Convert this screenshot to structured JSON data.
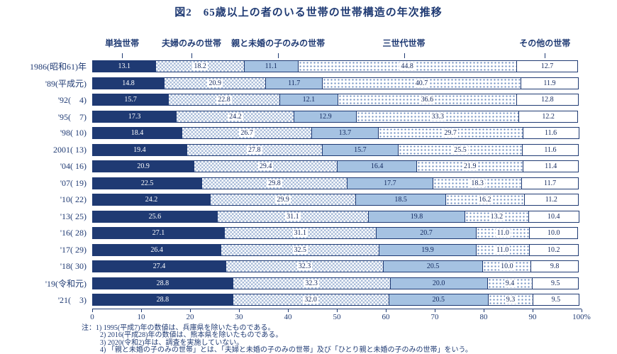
{
  "title": "図2　65歳以上の者のいる世帯の世帯構造の年次推移",
  "notes": [
    "注：1) 1995(平成7)年の数値は、兵庫県を除いたものである。",
    "2) 2016(平成28)年の数値は、熊本県を除いたものである。",
    "3) 2020(令和2)年は、調査を実施していない。",
    "4) 「親と未婚の子のみの世帯」とは、「夫婦と未婚の子のみの世帯」及び「ひとり親と未婚の子のみの世帯」をいう。"
  ],
  "chart_data": {
    "type": "bar",
    "stacked": true,
    "orientation": "horizontal",
    "title": "図2　65歳以上の者のいる世帯の世帯構造の年次推移",
    "xlim": [
      0,
      100
    ],
    "x_ticks": [
      "0",
      "10",
      "20",
      "30",
      "40",
      "50",
      "60",
      "70",
      "80",
      "90",
      "100%"
    ],
    "categories": [
      "1986(昭和61)年",
      "'89(平成元)",
      "'92(　4)",
      "'95(　7)",
      "'98( 10)",
      "2001( 13)",
      "'04( 16)",
      "'07( 19)",
      "'10( 22)",
      "'13( 25)",
      "'16( 28)",
      "'17( 29)",
      "'18( 30)",
      "'19(令和元)",
      "'21(　3)"
    ],
    "header_positions_pct": [
      6.1,
      20.3,
      38,
      63.7,
      92.5
    ],
    "series": [
      {
        "name": "単独世帯",
        "key": "tandoku",
        "style": "solid-dark",
        "color": "#1f3a73",
        "values": [
          "13.1",
          "14.8",
          "15.7",
          "17.3",
          "18.4",
          "19.4",
          "20.9",
          "22.5",
          "24.2",
          "25.6",
          "27.1",
          "26.4",
          "27.4",
          "28.8",
          "28.8"
        ]
      },
      {
        "name": "夫婦のみの世帯",
        "key": "fufu",
        "style": "checker",
        "color": "#a9bcd9",
        "values": [
          "18.2",
          "20.9",
          "22.8",
          "24.2",
          "26.7",
          "27.8",
          "29.4",
          "29.8",
          "29.9",
          "31.1",
          "31.1",
          "32.5",
          "32.3",
          "32.3",
          "32.0"
        ]
      },
      {
        "name": "親と未婚の子のみの世帯",
        "key": "oyako",
        "style": "solid-light",
        "color": "#a5c2e2",
        "values": [
          "11.1",
          "11.7",
          "12.1",
          "12.9",
          "13.7",
          "15.7",
          "16.4",
          "17.7",
          "18.5",
          "19.8",
          "20.7",
          "19.9",
          "20.5",
          "20.0",
          "20.5"
        ]
      },
      {
        "name": "三世代世帯",
        "key": "sansedai",
        "style": "dots",
        "color": "#6b8cbf",
        "values": [
          "44.8",
          "40.7",
          "36.6",
          "33.3",
          "29.7",
          "25.5",
          "21.9",
          "18.3",
          "16.2",
          "13.2",
          "11.0",
          "11.0",
          "10.0",
          "9.4",
          "9.3"
        ]
      },
      {
        "name": "その他の世帯",
        "key": "sonota",
        "style": "plain",
        "color": "#ffffff",
        "values": [
          "12.7",
          "11.9",
          "12.8",
          "12.2",
          "11.6",
          "11.6",
          "11.4",
          "11.7",
          "11.2",
          "10.4",
          "10.0",
          "10.2",
          "9.8",
          "9.5",
          "9.5"
        ]
      }
    ]
  }
}
